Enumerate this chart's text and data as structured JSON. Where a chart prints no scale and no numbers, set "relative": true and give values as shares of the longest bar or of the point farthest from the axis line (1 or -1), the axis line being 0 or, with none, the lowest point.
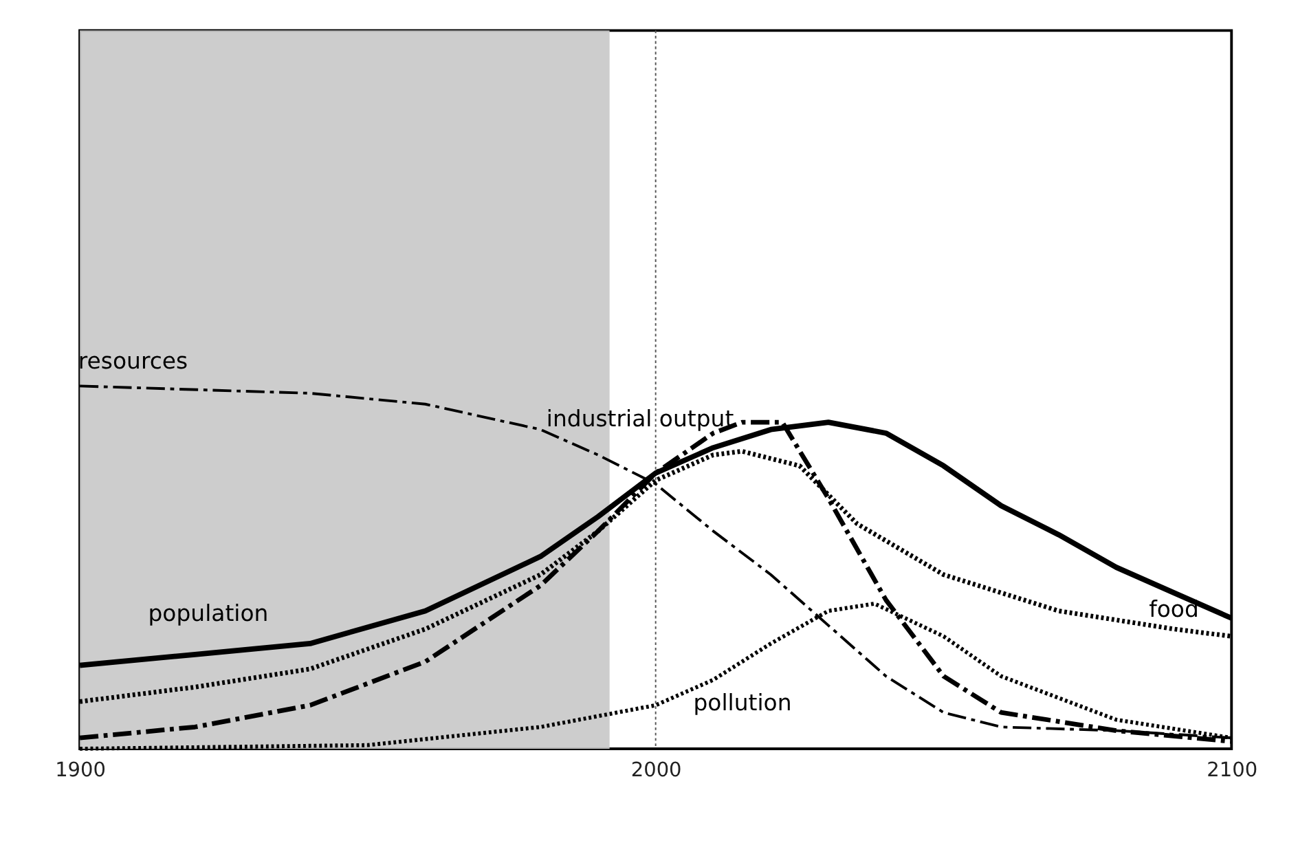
{
  "chart_data": {
    "type": "line",
    "relative": true,
    "xlim": [
      1900,
      2100
    ],
    "xticks": [
      1900,
      2000,
      2100
    ],
    "grid": false,
    "tick_labels": "x",
    "series": [
      {
        "name": "population",
        "color": "#000000",
        "line_style": "solid",
        "x": [
          1900,
          1920,
          1940,
          1960,
          1980,
          1990,
          2000,
          2010,
          2020,
          2030,
          2040,
          2050,
          2060,
          2070,
          2080,
          2090,
          2100
        ],
        "values": [
          0.23,
          0.26,
          0.29,
          0.38,
          0.53,
          0.64,
          0.76,
          0.83,
          0.88,
          0.9,
          0.87,
          0.78,
          0.67,
          0.59,
          0.5,
          0.43,
          0.36
        ]
      },
      {
        "name": "food",
        "color": "#000000",
        "line_style": "dotted",
        "x": [
          1900,
          1920,
          1940,
          1960,
          1980,
          1990,
          2000,
          2010,
          2015,
          2025,
          2035,
          2050,
          2070,
          2090,
          2100
        ],
        "values": [
          0.13,
          0.17,
          0.22,
          0.33,
          0.48,
          0.6,
          0.74,
          0.81,
          0.82,
          0.78,
          0.62,
          0.48,
          0.38,
          0.33,
          0.31
        ]
      },
      {
        "name": "industrial output",
        "color": "#000000",
        "line_style": "dashed",
        "x": [
          1900,
          1920,
          1940,
          1960,
          1980,
          1990,
          2000,
          2010,
          2015,
          2022,
          2030,
          2040,
          2050,
          2060,
          2080,
          2100
        ],
        "values": [
          0.03,
          0.06,
          0.12,
          0.24,
          0.45,
          0.6,
          0.76,
          0.87,
          0.9,
          0.9,
          0.69,
          0.41,
          0.2,
          0.1,
          0.05,
          0.02
        ]
      },
      {
        "name": "resources",
        "color": "#000000",
        "line_style": "dashed",
        "x": [
          1900,
          1940,
          1960,
          1980,
          1990,
          2000,
          2010,
          2020,
          2030,
          2040,
          2050,
          2060,
          2080,
          2100
        ],
        "values": [
          1.0,
          0.98,
          0.95,
          0.88,
          0.81,
          0.73,
          0.6,
          0.48,
          0.34,
          0.2,
          0.1,
          0.06,
          0.05,
          0.03
        ]
      },
      {
        "name": "pollution",
        "color": "#000000",
        "line_style": "dotted",
        "x": [
          1900,
          1950,
          1980,
          2000,
          2010,
          2020,
          2030,
          2038,
          2050,
          2060,
          2080,
          2100
        ],
        "values": [
          0.0,
          0.01,
          0.06,
          0.12,
          0.19,
          0.29,
          0.38,
          0.4,
          0.31,
          0.2,
          0.08,
          0.03
        ]
      }
    ],
    "bands": [
      {
        "axis": "x",
        "from": 1900,
        "to": 1992,
        "color": "#c8c8c8"
      }
    ],
    "ref_lines": [
      {
        "axis": "x",
        "value": 2000,
        "color": "#555555",
        "line_style": "dotted"
      }
    ]
  }
}
